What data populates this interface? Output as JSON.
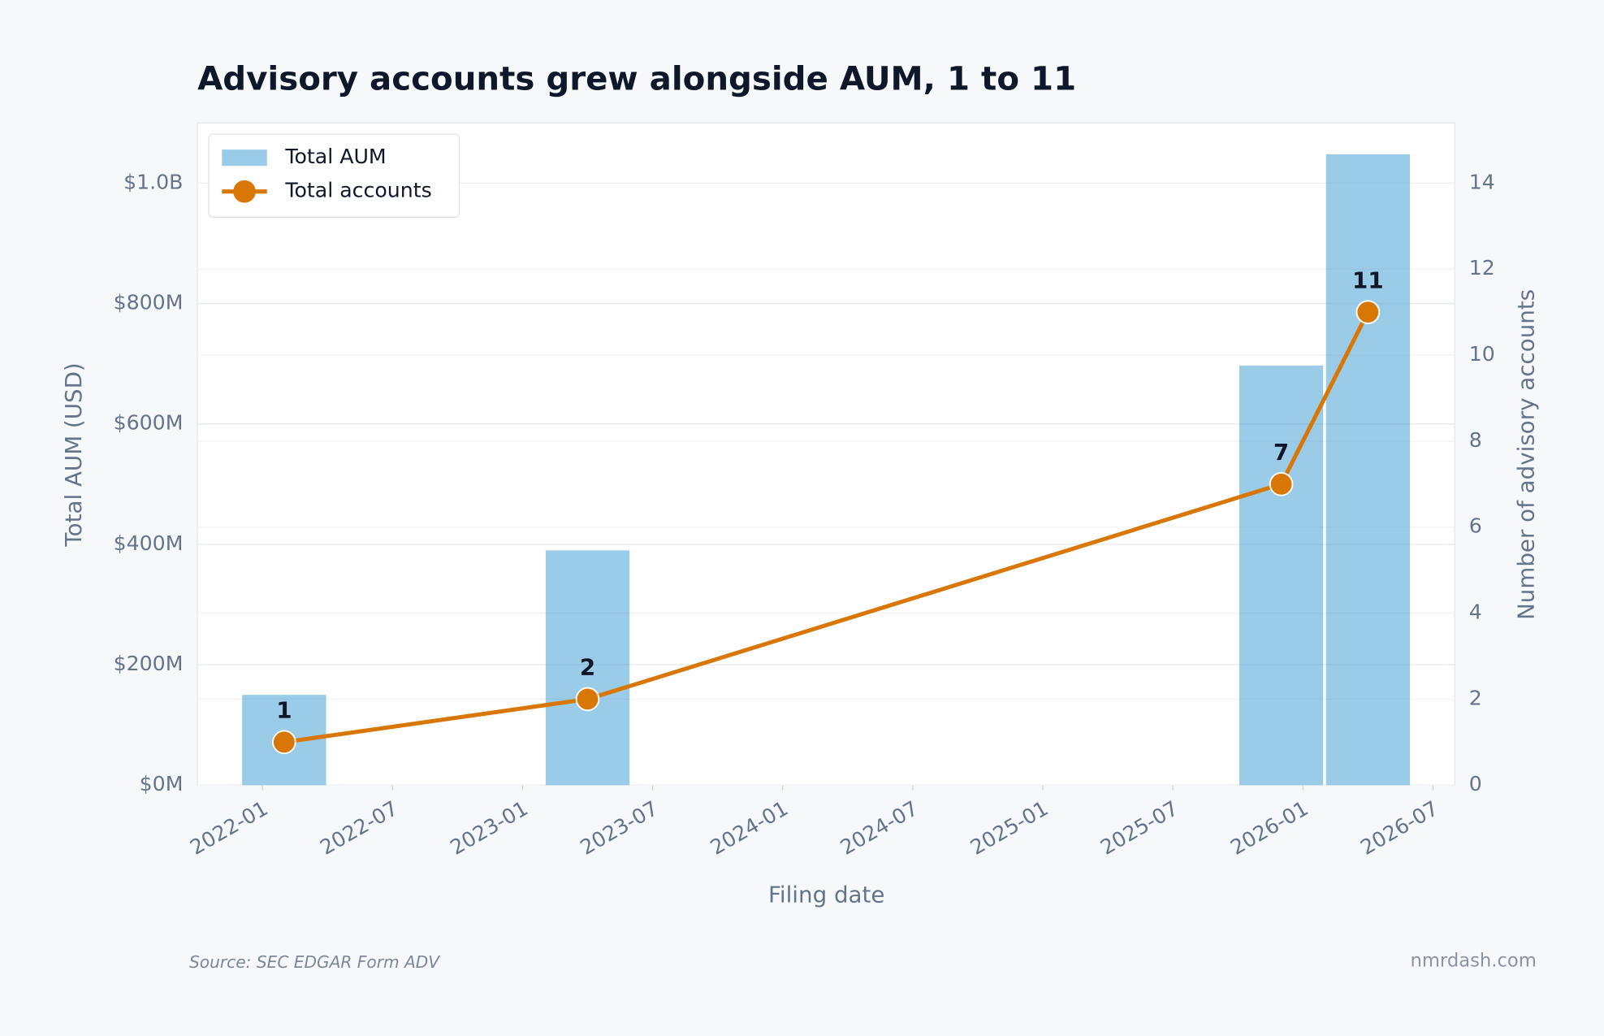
{
  "chart_data": {
    "type": "bar-line",
    "title": "Advisory accounts grew alongside AUM, 1 to 11",
    "x_label": "Filing date",
    "y_label": "Total AUM (USD)",
    "y2_label": "Number of advisory accounts",
    "x": [
      "2022-02",
      "2023-04",
      "2025-12",
      "2026-04"
    ],
    "xlim": [
      "2021-10",
      "2026-08"
    ],
    "xticks": [
      "2022-01",
      "2022-07",
      "2023-01",
      "2023-07",
      "2024-01",
      "2024-07",
      "2025-01",
      "2025-07",
      "2026-01",
      "2026-07"
    ],
    "ylim": [
      0,
      1100000000
    ],
    "yticks": [
      {
        "value": 0,
        "label": "$0M"
      },
      {
        "value": 200000000,
        "label": "$200M"
      },
      {
        "value": 400000000,
        "label": "$400M"
      },
      {
        "value": 600000000,
        "label": "$600M"
      },
      {
        "value": 800000000,
        "label": "$800M"
      },
      {
        "value": 1000000000,
        "label": "$1.0B"
      }
    ],
    "y2lim": [
      0,
      15.4
    ],
    "y2ticks": [
      0,
      2,
      4,
      6,
      8,
      10,
      12,
      14
    ],
    "grid": true,
    "legend": "upper-left",
    "series": [
      {
        "name": "Total AUM",
        "type": "bar",
        "color": "#3e9bd1",
        "values": [
          150000000,
          390000000,
          697000000,
          1048000000
        ]
      },
      {
        "name": "Total accounts",
        "type": "line",
        "axis": "y2",
        "color": "#d97706",
        "values": [
          1,
          2,
          7,
          11
        ]
      }
    ],
    "source": "Source: SEC EDGAR Form ADV",
    "credit": "nmrdash.com"
  }
}
